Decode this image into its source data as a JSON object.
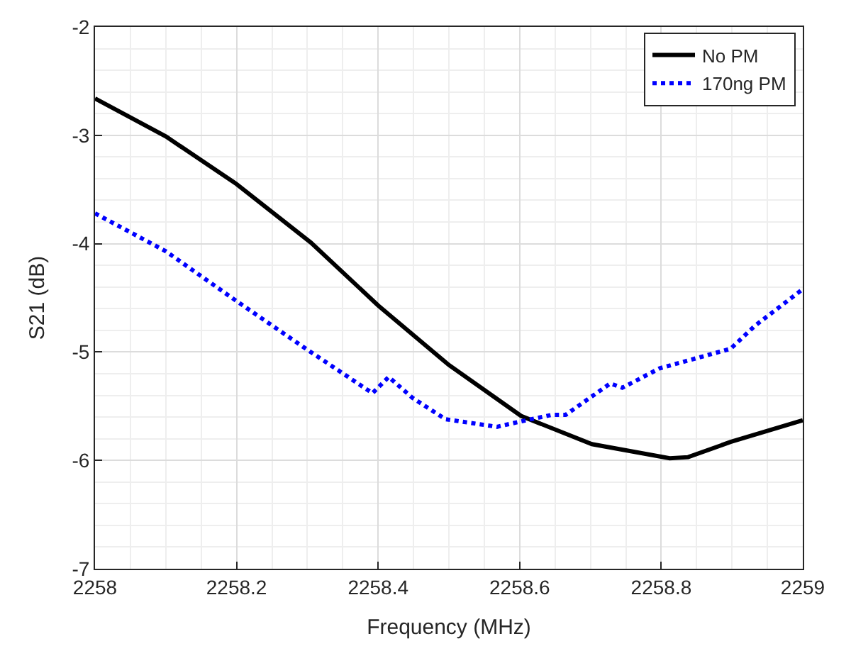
{
  "chart_data": {
    "type": "line",
    "xlabel": "Frequency (MHz)",
    "ylabel": "S21 (dB)",
    "xlim": [
      2258,
      2259
    ],
    "xticks": [
      2258,
      2258.2,
      2258.4,
      2258.6,
      2258.8,
      2259
    ],
    "ylim": [
      -7,
      -2
    ],
    "yticks": [
      -7,
      -6,
      -5,
      -4,
      -3,
      -2
    ],
    "grid": true,
    "legend": "top right",
    "series": [
      {
        "name": "No PM",
        "color": "#000000",
        "line_style": "solid",
        "x": [
          2258,
          2258.1,
          2258.2,
          2258.305,
          2258.4,
          2258.5,
          2258.602,
          2258.702,
          2258.812,
          2258.838,
          2258.898,
          2259
        ],
        "values": [
          -2.66,
          -3.01,
          -3.45,
          -3.99,
          -4.57,
          -5.12,
          -5.59,
          -5.85,
          -5.98,
          -5.97,
          -5.83,
          -5.63
        ]
      },
      {
        "name": "170ng PM",
        "color": "#0000ff",
        "line_style": "dotted",
        "x": [
          2258,
          2258.1,
          2258.2,
          2258.298,
          2258.392,
          2258.415,
          2258.448,
          2258.495,
          2258.568,
          2258.602,
          2258.645,
          2258.665,
          2258.728,
          2258.745,
          2258.798,
          2258.898,
          2258.932,
          2259
        ],
        "values": [
          -3.72,
          -4.07,
          -4.53,
          -4.97,
          -5.38,
          -5.23,
          -5.42,
          -5.62,
          -5.69,
          -5.64,
          -5.58,
          -5.58,
          -5.29,
          -5.33,
          -5.15,
          -4.97,
          -4.76,
          -4.42
        ]
      }
    ]
  }
}
